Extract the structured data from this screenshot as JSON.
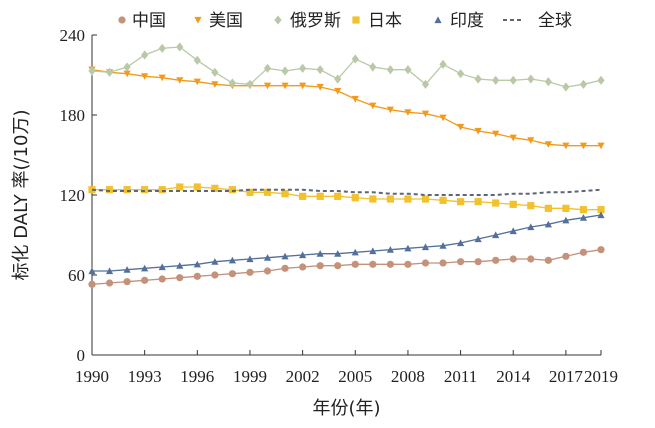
{
  "chart_data": {
    "type": "line",
    "xlabel": "年份(年)",
    "ylabel": "标化 DALY 率(/10万)",
    "xlim": [
      1990,
      2019
    ],
    "ylim": [
      0,
      240
    ],
    "xticks": [
      "1990",
      "1993",
      "1996",
      "1999",
      "2002",
      "2005",
      "2008",
      "2011",
      "2014",
      "2017",
      "2019"
    ],
    "yticks": [
      "0",
      "60",
      "120",
      "180",
      "240"
    ],
    "grid": false,
    "legend_position": "top",
    "x": [
      1990,
      1991,
      1992,
      1993,
      1994,
      1995,
      1996,
      1997,
      1998,
      1999,
      2000,
      2001,
      2002,
      2003,
      2004,
      2005,
      2006,
      2007,
      2008,
      2009,
      2010,
      2011,
      2012,
      2013,
      2014,
      2015,
      2016,
      2017,
      2018,
      2019
    ],
    "series": [
      {
        "name": "中国",
        "marker": "circle",
        "color": "#c4917a",
        "values": [
          53,
          54,
          55,
          56,
          57,
          58,
          59,
          60,
          61,
          62,
          63,
          65,
          66,
          67,
          67,
          68,
          68,
          68,
          68,
          69,
          69,
          70,
          70,
          71,
          72,
          72,
          71,
          74,
          77,
          79
        ]
      },
      {
        "name": "美国",
        "marker": "triangle-down",
        "color": "#f39a1c",
        "values": [
          214,
          212,
          211,
          209,
          208,
          206,
          205,
          203,
          202,
          202,
          202,
          202,
          202,
          201,
          198,
          192,
          187,
          184,
          182,
          181,
          178,
          171,
          168,
          166,
          163,
          161,
          158,
          157,
          157,
          157
        ]
      },
      {
        "name": "俄罗斯",
        "marker": "diamond",
        "color": "#b9c9a8",
        "values": [
          213,
          212,
          216,
          225,
          230,
          231,
          221,
          212,
          204,
          203,
          215,
          213,
          215,
          214,
          207,
          222,
          216,
          214,
          214,
          203,
          218,
          211,
          207,
          206,
          206,
          207,
          205,
          201,
          203,
          206
        ]
      },
      {
        "name": "日本",
        "marker": "square",
        "color": "#f2c12e",
        "values": [
          124,
          124,
          124,
          124,
          124,
          126,
          126,
          125,
          124,
          122,
          122,
          121,
          119,
          119,
          119,
          118,
          117,
          117,
          117,
          117,
          116,
          115,
          115,
          114,
          113,
          112,
          110,
          110,
          109,
          109
        ]
      },
      {
        "name": "印度",
        "marker": "triangle-up",
        "color": "#52709a",
        "values": [
          63,
          63,
          64,
          65,
          66,
          67,
          68,
          70,
          71,
          72,
          73,
          74,
          75,
          76,
          76,
          77,
          78,
          79,
          80,
          81,
          82,
          84,
          87,
          90,
          93,
          96,
          98,
          101,
          103,
          105
        ]
      },
      {
        "name": "全球",
        "marker": "none",
        "dash": true,
        "color": "#5c6676",
        "values": [
          124,
          123,
          123,
          123,
          123,
          123,
          123,
          123,
          123,
          124,
          124,
          124,
          124,
          123,
          123,
          122,
          122,
          121,
          121,
          120,
          120,
          120,
          120,
          120,
          121,
          121,
          122,
          122,
          123,
          124
        ]
      }
    ]
  }
}
